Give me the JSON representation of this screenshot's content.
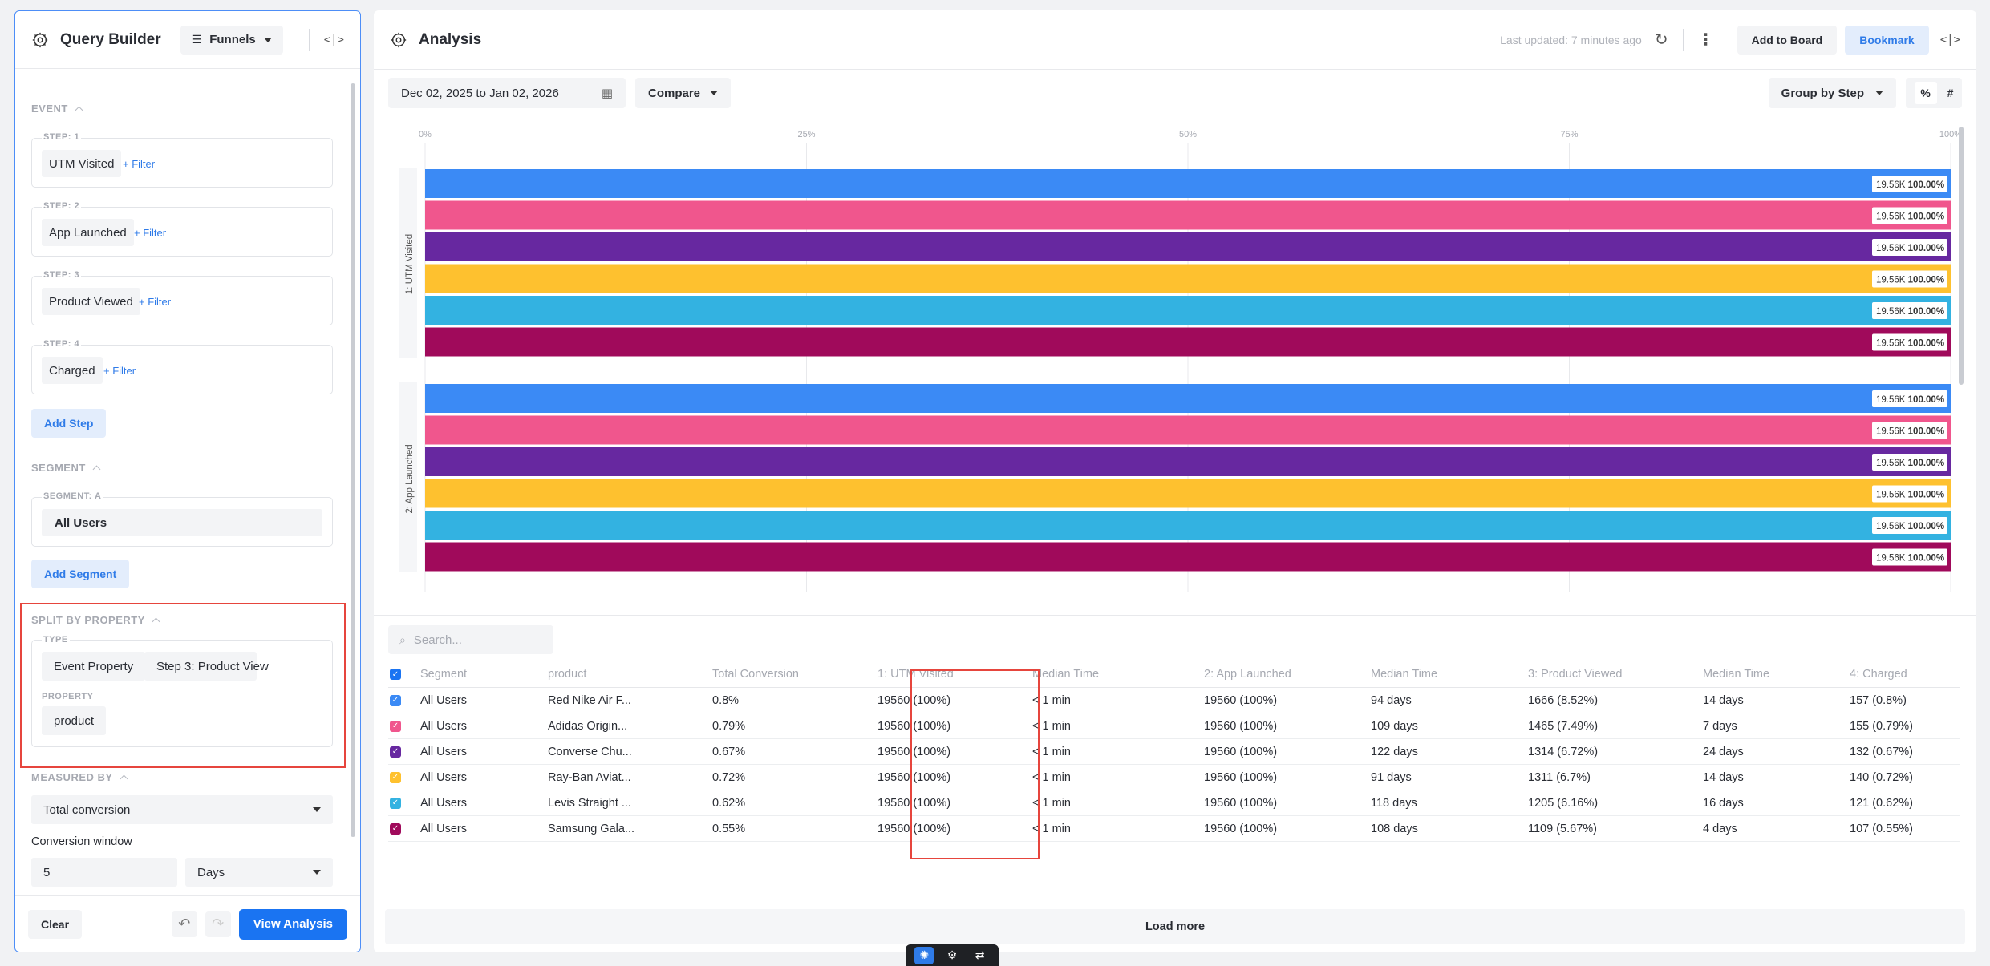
{
  "query_builder": {
    "title": "Query Builder",
    "mode": "Funnels",
    "sections": {
      "event": "EVENT",
      "segment": "SEGMENT",
      "split": "SPLIT BY PROPERTY",
      "measured": "MEASURED BY"
    },
    "filter_label": "+ Filter",
    "steps": [
      {
        "label": "STEP: 1",
        "event": "UTM Visited"
      },
      {
        "label": "STEP: 2",
        "event": "App Launched"
      },
      {
        "label": "STEP: 3",
        "event": "Product Viewed"
      },
      {
        "label": "STEP: 4",
        "event": "Charged"
      }
    ],
    "add_step": "Add Step",
    "segment_label": "SEGMENT: A",
    "segment_value": "All Users",
    "add_segment": "Add Segment",
    "split_type_label": "TYPE",
    "split_type": "Event Property",
    "split_step": "Step 3: Product View",
    "split_property_label": "PROPERTY",
    "split_property": "product",
    "measured_value": "Total conversion",
    "conversion_window_label": "Conversion window",
    "conversion_window_value": "5",
    "conversion_window_unit": "Days",
    "clear": "Clear",
    "view_analysis": "View Analysis"
  },
  "analysis": {
    "title": "Analysis",
    "last_updated": "Last updated: 7 minutes ago",
    "add_to_board": "Add to Board",
    "bookmark": "Bookmark",
    "date_range": "Dec 02, 2025 to Jan 02, 2026",
    "compare": "Compare",
    "group_by": "Group by Step",
    "toggle_percent": "%",
    "toggle_count": "#",
    "search_placeholder": "Search...",
    "load_more": "Load more"
  },
  "chart_data": {
    "type": "bar",
    "orientation": "horizontal",
    "x_ticks": [
      "0%",
      "25%",
      "50%",
      "75%",
      "100%"
    ],
    "xlim": [
      0,
      100
    ],
    "groups": [
      "1: UTM Visited",
      "2: App Launched"
    ],
    "series": [
      {
        "color": "#3b8af5",
        "values": [
          100,
          100
        ],
        "labels": [
          "19.56K",
          "19.56K"
        ]
      },
      {
        "color": "#f0568d",
        "values": [
          100,
          100
        ],
        "labels": [
          "19.56K",
          "19.56K"
        ]
      },
      {
        "color": "#6728a0",
        "values": [
          100,
          100
        ],
        "labels": [
          "19.56K",
          "19.56K"
        ]
      },
      {
        "color": "#fec12f",
        "values": [
          100,
          100
        ],
        "labels": [
          "19.56K",
          "19.56K"
        ]
      },
      {
        "color": "#33b2e1",
        "values": [
          100,
          100
        ],
        "labels": [
          "19.56K",
          "19.56K"
        ]
      },
      {
        "color": "#a00a5b",
        "values": [
          100,
          100
        ],
        "labels": [
          "19.56K",
          "19.56K"
        ]
      }
    ],
    "value_label": "100.00%"
  },
  "table": {
    "columns": [
      "Segment",
      "product",
      "Total Conversion",
      "1: UTM Visited",
      "Median Time",
      "2: App Launched",
      "Median Time",
      "3: Product Viewed",
      "Median Time",
      "4: Charged"
    ],
    "header_check_color": "#1a74f2",
    "rows": [
      {
        "color": "#3b8af5",
        "cells": [
          "All Users",
          "Red Nike Air F...",
          "0.8%",
          "19560 (100%)",
          "< 1 min",
          "19560 (100%)",
          "94 days",
          "1666 (8.52%)",
          "14 days",
          "157 (0.8%)"
        ]
      },
      {
        "color": "#f0568d",
        "cells": [
          "All Users",
          "Adidas Origin...",
          "0.79%",
          "19560 (100%)",
          "< 1 min",
          "19560 (100%)",
          "109 days",
          "1465 (7.49%)",
          "7 days",
          "155 (0.79%)"
        ]
      },
      {
        "color": "#6728a0",
        "cells": [
          "All Users",
          "Converse Chu...",
          "0.67%",
          "19560 (100%)",
          "< 1 min",
          "19560 (100%)",
          "122 days",
          "1314 (6.72%)",
          "24 days",
          "132 (0.67%)"
        ]
      },
      {
        "color": "#fec12f",
        "cells": [
          "All Users",
          "Ray-Ban Aviat...",
          "0.72%",
          "19560 (100%)",
          "< 1 min",
          "19560 (100%)",
          "91 days",
          "1311 (6.7%)",
          "14 days",
          "140 (0.72%)"
        ]
      },
      {
        "color": "#33b2e1",
        "cells": [
          "All Users",
          "Levis Straight ...",
          "0.62%",
          "19560 (100%)",
          "< 1 min",
          "19560 (100%)",
          "118 days",
          "1205 (6.16%)",
          "16 days",
          "121 (0.62%)"
        ]
      },
      {
        "color": "#a00a5b",
        "cells": [
          "All Users",
          "Samsung Gala...",
          "0.55%",
          "19560 (100%)",
          "< 1 min",
          "19560 (100%)",
          "108 days",
          "1109 (5.67%)",
          "4 days",
          "107 (0.55%)"
        ]
      }
    ]
  }
}
